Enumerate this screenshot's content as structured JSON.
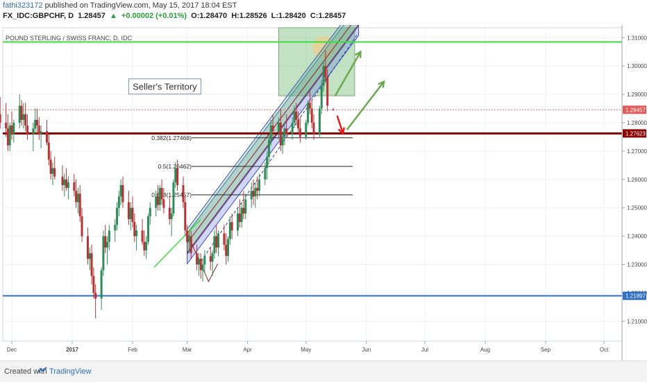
{
  "header": {
    "user": "fathi323172",
    "published": "published on TradingView.com, May 15, 2017 18:04 EST",
    "symbol": "FX_IDC:GBPCHF, D",
    "last": "1.28457",
    "change": "+0.00002 (+0.01%)",
    "open": "O:1.28470",
    "high": "H:1.28526",
    "low": "L:1.28420",
    "close": "C:1.28457"
  },
  "footer": {
    "created": "Created with",
    "brand": "TradingView"
  },
  "chart_data": {
    "type": "candlestick",
    "title": "POUND STERLING / SWISS FRANC, D, IDC",
    "ylim": [
      1.203,
      1.3135
    ],
    "y_ticks": [
      "1.21000",
      "1.22000",
      "1.23000",
      "1.24000",
      "1.25000",
      "1.26000",
      "1.27000",
      "1.28000",
      "1.29000",
      "1.30000",
      "1.31000"
    ],
    "x_ticks": [
      "Dec",
      "2017",
      "Feb",
      "Mar",
      "Apr",
      "May",
      "Jun",
      "Jul",
      "Aug",
      "Sep",
      "Oct"
    ],
    "x_tick_dates": [
      "2016-12-01",
      "2017-01-01",
      "2017-02-01",
      "2017-03-01",
      "2017-04-01",
      "2017-05-01",
      "2017-06-01",
      "2017-07-01",
      "2017-08-01",
      "2017-09-01",
      "2017-10-01"
    ],
    "price_labels": [
      {
        "label": "1.28457",
        "value": 1.28457,
        "color": "#e05a5a"
      },
      {
        "label": "1.27623",
        "value": 1.27623,
        "color": "#8b0000"
      },
      {
        "label": "1.21897",
        "value": 1.21897,
        "color": "#2f6fc6"
      }
    ],
    "horizontal_lines": [
      {
        "name": "upper-green-level",
        "value": 1.3085,
        "color": "#3ddc3d"
      },
      {
        "name": "resistance-level",
        "value": 1.27623,
        "color": "#8b0000"
      },
      {
        "name": "support-level",
        "value": 1.21897,
        "color": "#2f6fc6"
      }
    ],
    "fib_levels": [
      {
        "label": "0.382(1.27468)",
        "value": 1.27468
      },
      {
        "label": "0.5(1.26462)",
        "value": 1.26462
      },
      {
        "label": "0.618(1.25457)",
        "value": 1.25457
      }
    ],
    "annotation": "Seller's Territory",
    "candles": [
      {
        "d": "2016-11-21",
        "o": 1.25,
        "h": 1.256,
        "l": 1.248,
        "c": 1.255
      },
      {
        "d": "2016-11-22",
        "o": 1.255,
        "h": 1.27,
        "l": 1.254,
        "c": 1.268
      },
      {
        "d": "2016-11-23",
        "o": 1.268,
        "h": 1.276,
        "l": 1.265,
        "c": 1.274
      },
      {
        "d": "2016-11-24",
        "o": 1.274,
        "h": 1.285,
        "l": 1.272,
        "c": 1.283
      },
      {
        "d": "2016-11-25",
        "o": 1.283,
        "h": 1.289,
        "l": 1.278,
        "c": 1.28
      },
      {
        "d": "2016-11-28",
        "o": 1.28,
        "h": 1.287,
        "l": 1.275,
        "c": 1.278
      },
      {
        "d": "2016-11-29",
        "o": 1.278,
        "h": 1.283,
        "l": 1.27,
        "c": 1.272
      },
      {
        "d": "2016-11-30",
        "o": 1.272,
        "h": 1.28,
        "l": 1.27,
        "c": 1.279
      },
      {
        "d": "2016-12-01",
        "o": 1.279,
        "h": 1.284,
        "l": 1.274,
        "c": 1.276
      },
      {
        "d": "2016-12-02",
        "o": 1.276,
        "h": 1.281,
        "l": 1.273,
        "c": 1.28
      },
      {
        "d": "2016-12-05",
        "o": 1.28,
        "h": 1.29,
        "l": 1.278,
        "c": 1.286
      },
      {
        "d": "2016-12-06",
        "o": 1.286,
        "h": 1.288,
        "l": 1.279,
        "c": 1.281
      },
      {
        "d": "2016-12-07",
        "o": 1.281,
        "h": 1.287,
        "l": 1.278,
        "c": 1.283
      },
      {
        "d": "2016-12-08",
        "o": 1.283,
        "h": 1.287,
        "l": 1.277,
        "c": 1.279
      },
      {
        "d": "2016-12-09",
        "o": 1.279,
        "h": 1.283,
        "l": 1.274,
        "c": 1.276
      },
      {
        "d": "2016-12-12",
        "o": 1.276,
        "h": 1.28,
        "l": 1.27,
        "c": 1.278
      },
      {
        "d": "2016-12-13",
        "o": 1.278,
        "h": 1.285,
        "l": 1.276,
        "c": 1.281
      },
      {
        "d": "2016-12-14",
        "o": 1.281,
        "h": 1.285,
        "l": 1.276,
        "c": 1.279
      },
      {
        "d": "2016-12-15",
        "o": 1.279,
        "h": 1.282,
        "l": 1.274,
        "c": 1.276
      },
      {
        "d": "2016-12-16",
        "o": 1.276,
        "h": 1.279,
        "l": 1.271,
        "c": 1.277
      },
      {
        "d": "2016-12-19",
        "o": 1.277,
        "h": 1.281,
        "l": 1.272,
        "c": 1.273
      },
      {
        "d": "2016-12-20",
        "o": 1.273,
        "h": 1.276,
        "l": 1.265,
        "c": 1.267
      },
      {
        "d": "2016-12-21",
        "o": 1.267,
        "h": 1.27,
        "l": 1.26,
        "c": 1.262
      },
      {
        "d": "2016-12-22",
        "o": 1.262,
        "h": 1.266,
        "l": 1.258,
        "c": 1.264
      },
      {
        "d": "2016-12-23",
        "o": 1.264,
        "h": 1.268,
        "l": 1.26,
        "c": 1.261
      },
      {
        "d": "2016-12-27",
        "o": 1.261,
        "h": 1.265,
        "l": 1.256,
        "c": 1.258
      },
      {
        "d": "2016-12-28",
        "o": 1.258,
        "h": 1.262,
        "l": 1.254,
        "c": 1.26
      },
      {
        "d": "2016-12-29",
        "o": 1.26,
        "h": 1.264,
        "l": 1.256,
        "c": 1.257
      },
      {
        "d": "2016-12-30",
        "o": 1.257,
        "h": 1.261,
        "l": 1.253,
        "c": 1.259
      },
      {
        "d": "2017-01-02",
        "o": 1.259,
        "h": 1.262,
        "l": 1.254,
        "c": 1.256
      },
      {
        "d": "2017-01-03",
        "o": 1.256,
        "h": 1.26,
        "l": 1.25,
        "c": 1.252
      },
      {
        "d": "2017-01-04",
        "o": 1.252,
        "h": 1.257,
        "l": 1.248,
        "c": 1.255
      },
      {
        "d": "2017-01-05",
        "o": 1.255,
        "h": 1.258,
        "l": 1.245,
        "c": 1.247
      },
      {
        "d": "2017-01-06",
        "o": 1.247,
        "h": 1.25,
        "l": 1.238,
        "c": 1.24
      },
      {
        "d": "2017-01-09",
        "o": 1.24,
        "h": 1.243,
        "l": 1.23,
        "c": 1.232
      },
      {
        "d": "2017-01-10",
        "o": 1.232,
        "h": 1.236,
        "l": 1.228,
        "c": 1.234
      },
      {
        "d": "2017-01-11",
        "o": 1.234,
        "h": 1.237,
        "l": 1.223,
        "c": 1.226
      },
      {
        "d": "2017-01-12",
        "o": 1.226,
        "h": 1.229,
        "l": 1.218,
        "c": 1.22
      },
      {
        "d": "2017-01-13",
        "o": 1.22,
        "h": 1.223,
        "l": 1.211,
        "c": 1.218
      },
      {
        "d": "2017-01-16",
        "o": 1.218,
        "h": 1.229,
        "l": 1.214,
        "c": 1.228
      },
      {
        "d": "2017-01-17",
        "o": 1.228,
        "h": 1.242,
        "l": 1.226,
        "c": 1.24
      },
      {
        "d": "2017-01-18",
        "o": 1.24,
        "h": 1.244,
        "l": 1.234,
        "c": 1.236
      },
      {
        "d": "2017-01-19",
        "o": 1.236,
        "h": 1.24,
        "l": 1.23,
        "c": 1.238
      },
      {
        "d": "2017-01-20",
        "o": 1.238,
        "h": 1.244,
        "l": 1.235,
        "c": 1.242
      },
      {
        "d": "2017-01-23",
        "o": 1.242,
        "h": 1.246,
        "l": 1.238,
        "c": 1.244
      },
      {
        "d": "2017-01-24",
        "o": 1.244,
        "h": 1.252,
        "l": 1.242,
        "c": 1.25
      },
      {
        "d": "2017-01-25",
        "o": 1.25,
        "h": 1.256,
        "l": 1.247,
        "c": 1.254
      },
      {
        "d": "2017-01-26",
        "o": 1.254,
        "h": 1.26,
        "l": 1.251,
        "c": 1.258
      },
      {
        "d": "2017-01-27",
        "o": 1.258,
        "h": 1.261,
        "l": 1.25,
        "c": 1.252
      },
      {
        "d": "2017-01-30",
        "o": 1.252,
        "h": 1.256,
        "l": 1.244,
        "c": 1.246
      },
      {
        "d": "2017-01-31",
        "o": 1.246,
        "h": 1.252,
        "l": 1.242,
        "c": 1.25
      },
      {
        "d": "2017-02-01",
        "o": 1.25,
        "h": 1.254,
        "l": 1.243,
        "c": 1.245
      },
      {
        "d": "2017-02-02",
        "o": 1.245,
        "h": 1.248,
        "l": 1.238,
        "c": 1.24
      },
      {
        "d": "2017-02-03",
        "o": 1.24,
        "h": 1.244,
        "l": 1.235,
        "c": 1.242
      },
      {
        "d": "2017-02-06",
        "o": 1.242,
        "h": 1.246,
        "l": 1.237,
        "c": 1.238
      },
      {
        "d": "2017-02-07",
        "o": 1.238,
        "h": 1.242,
        "l": 1.233,
        "c": 1.235
      },
      {
        "d": "2017-02-08",
        "o": 1.235,
        "h": 1.24,
        "l": 1.232,
        "c": 1.238
      },
      {
        "d": "2017-02-09",
        "o": 1.238,
        "h": 1.248,
        "l": 1.237,
        "c": 1.247
      },
      {
        "d": "2017-02-10",
        "o": 1.247,
        "h": 1.252,
        "l": 1.244,
        "c": 1.25
      },
      {
        "d": "2017-02-13",
        "o": 1.25,
        "h": 1.256,
        "l": 1.247,
        "c": 1.254
      },
      {
        "d": "2017-02-14",
        "o": 1.254,
        "h": 1.258,
        "l": 1.249,
        "c": 1.251
      },
      {
        "d": "2017-02-15",
        "o": 1.251,
        "h": 1.258,
        "l": 1.249,
        "c": 1.257
      },
      {
        "d": "2017-02-16",
        "o": 1.257,
        "h": 1.26,
        "l": 1.251,
        "c": 1.253
      },
      {
        "d": "2017-02-17",
        "o": 1.253,
        "h": 1.257,
        "l": 1.248,
        "c": 1.25
      },
      {
        "d": "2017-02-20",
        "o": 1.25,
        "h": 1.254,
        "l": 1.244,
        "c": 1.246
      },
      {
        "d": "2017-02-21",
        "o": 1.246,
        "h": 1.25,
        "l": 1.24,
        "c": 1.248
      },
      {
        "d": "2017-02-22",
        "o": 1.248,
        "h": 1.26,
        "l": 1.247,
        "c": 1.259
      },
      {
        "d": "2017-02-23",
        "o": 1.259,
        "h": 1.266,
        "l": 1.257,
        "c": 1.264
      },
      {
        "d": "2017-02-24",
        "o": 1.264,
        "h": 1.267,
        "l": 1.256,
        "c": 1.258
      },
      {
        "d": "2017-02-27",
        "o": 1.258,
        "h": 1.261,
        "l": 1.25,
        "c": 1.252
      },
      {
        "d": "2017-02-28",
        "o": 1.252,
        "h": 1.254,
        "l": 1.24,
        "c": 1.242
      },
      {
        "d": "2017-03-01",
        "o": 1.242,
        "h": 1.244,
        "l": 1.235,
        "c": 1.238
      },
      {
        "d": "2017-03-02",
        "o": 1.238,
        "h": 1.242,
        "l": 1.234,
        "c": 1.24
      },
      {
        "d": "2017-03-03",
        "o": 1.24,
        "h": 1.242,
        "l": 1.232,
        "c": 1.234
      },
      {
        "d": "2017-03-06",
        "o": 1.234,
        "h": 1.237,
        "l": 1.228,
        "c": 1.23
      },
      {
        "d": "2017-03-07",
        "o": 1.23,
        "h": 1.234,
        "l": 1.226,
        "c": 1.232
      },
      {
        "d": "2017-03-08",
        "o": 1.232,
        "h": 1.234,
        "l": 1.225,
        "c": 1.228
      },
      {
        "d": "2017-03-09",
        "o": 1.228,
        "h": 1.232,
        "l": 1.224,
        "c": 1.23
      },
      {
        "d": "2017-03-10",
        "o": 1.23,
        "h": 1.235,
        "l": 1.227,
        "c": 1.233
      },
      {
        "d": "2017-03-13",
        "o": 1.233,
        "h": 1.236,
        "l": 1.228,
        "c": 1.231
      },
      {
        "d": "2017-03-14",
        "o": 1.231,
        "h": 1.235,
        "l": 1.226,
        "c": 1.234
      },
      {
        "d": "2017-03-15",
        "o": 1.234,
        "h": 1.242,
        "l": 1.232,
        "c": 1.24
      },
      {
        "d": "2017-03-16",
        "o": 1.24,
        "h": 1.244,
        "l": 1.234,
        "c": 1.236
      },
      {
        "d": "2017-03-17",
        "o": 1.236,
        "h": 1.242,
        "l": 1.233,
        "c": 1.241
      },
      {
        "d": "2017-03-20",
        "o": 1.241,
        "h": 1.244,
        "l": 1.235,
        "c": 1.237
      },
      {
        "d": "2017-03-21",
        "o": 1.237,
        "h": 1.241,
        "l": 1.23,
        "c": 1.233
      },
      {
        "d": "2017-03-22",
        "o": 1.233,
        "h": 1.24,
        "l": 1.231,
        "c": 1.239
      },
      {
        "d": "2017-03-23",
        "o": 1.239,
        "h": 1.247,
        "l": 1.237,
        "c": 1.245
      },
      {
        "d": "2017-03-24",
        "o": 1.245,
        "h": 1.248,
        "l": 1.239,
        "c": 1.242
      },
      {
        "d": "2017-03-27",
        "o": 1.242,
        "h": 1.25,
        "l": 1.24,
        "c": 1.248
      },
      {
        "d": "2017-03-28",
        "o": 1.248,
        "h": 1.253,
        "l": 1.243,
        "c": 1.245
      },
      {
        "d": "2017-03-29",
        "o": 1.245,
        "h": 1.252,
        "l": 1.243,
        "c": 1.25
      },
      {
        "d": "2017-03-30",
        "o": 1.25,
        "h": 1.256,
        "l": 1.246,
        "c": 1.248
      },
      {
        "d": "2017-03-31",
        "o": 1.248,
        "h": 1.255,
        "l": 1.246,
        "c": 1.253
      },
      {
        "d": "2017-04-03",
        "o": 1.253,
        "h": 1.259,
        "l": 1.25,
        "c": 1.256
      },
      {
        "d": "2017-04-04",
        "o": 1.256,
        "h": 1.26,
        "l": 1.251,
        "c": 1.254
      },
      {
        "d": "2017-04-05",
        "o": 1.254,
        "h": 1.259,
        "l": 1.25,
        "c": 1.257
      },
      {
        "d": "2017-04-06",
        "o": 1.257,
        "h": 1.261,
        "l": 1.253,
        "c": 1.256
      },
      {
        "d": "2017-04-07",
        "o": 1.256,
        "h": 1.262,
        "l": 1.254,
        "c": 1.26
      },
      {
        "d": "2017-04-10",
        "o": 1.26,
        "h": 1.266,
        "l": 1.258,
        "c": 1.264
      },
      {
        "d": "2017-04-11",
        "o": 1.264,
        "h": 1.27,
        "l": 1.26,
        "c": 1.268
      },
      {
        "d": "2017-04-12",
        "o": 1.268,
        "h": 1.276,
        "l": 1.266,
        "c": 1.274
      },
      {
        "d": "2017-04-13",
        "o": 1.274,
        "h": 1.281,
        "l": 1.272,
        "c": 1.279
      },
      {
        "d": "2017-04-14",
        "o": 1.279,
        "h": 1.283,
        "l": 1.275,
        "c": 1.277
      },
      {
        "d": "2017-04-17",
        "o": 1.277,
        "h": 1.282,
        "l": 1.274,
        "c": 1.28
      },
      {
        "d": "2017-04-18",
        "o": 1.28,
        "h": 1.285,
        "l": 1.27,
        "c": 1.272
      },
      {
        "d": "2017-04-19",
        "o": 1.272,
        "h": 1.277,
        "l": 1.269,
        "c": 1.275
      },
      {
        "d": "2017-04-20",
        "o": 1.275,
        "h": 1.28,
        "l": 1.272,
        "c": 1.278
      },
      {
        "d": "2017-04-21",
        "o": 1.278,
        "h": 1.283,
        "l": 1.275,
        "c": 1.276
      },
      {
        "d": "2017-04-24",
        "o": 1.276,
        "h": 1.282,
        "l": 1.274,
        "c": 1.28
      },
      {
        "d": "2017-04-25",
        "o": 1.28,
        "h": 1.286,
        "l": 1.278,
        "c": 1.284
      },
      {
        "d": "2017-04-26",
        "o": 1.284,
        "h": 1.287,
        "l": 1.279,
        "c": 1.281
      },
      {
        "d": "2017-04-27",
        "o": 1.281,
        "h": 1.284,
        "l": 1.276,
        "c": 1.278
      },
      {
        "d": "2017-04-28",
        "o": 1.278,
        "h": 1.282,
        "l": 1.273,
        "c": 1.275
      },
      {
        "d": "2017-05-01",
        "o": 1.275,
        "h": 1.281,
        "l": 1.274,
        "c": 1.28
      },
      {
        "d": "2017-05-02",
        "o": 1.28,
        "h": 1.288,
        "l": 1.279,
        "c": 1.287
      },
      {
        "d": "2017-05-03",
        "o": 1.287,
        "h": 1.291,
        "l": 1.283,
        "c": 1.285
      },
      {
        "d": "2017-05-04",
        "o": 1.285,
        "h": 1.288,
        "l": 1.278,
        "c": 1.28
      },
      {
        "d": "2017-05-05",
        "o": 1.28,
        "h": 1.283,
        "l": 1.274,
        "c": 1.276
      },
      {
        "d": "2017-05-08",
        "o": 1.276,
        "h": 1.286,
        "l": 1.275,
        "c": 1.285
      },
      {
        "d": "2017-05-09",
        "o": 1.285,
        "h": 1.295,
        "l": 1.283,
        "c": 1.293
      },
      {
        "d": "2017-05-10",
        "o": 1.293,
        "h": 1.302,
        "l": 1.291,
        "c": 1.3
      },
      {
        "d": "2017-05-11",
        "o": 1.3,
        "h": 1.3055,
        "l": 1.294,
        "c": 1.296
      },
      {
        "d": "2017-05-12",
        "o": 1.296,
        "h": 1.299,
        "l": 1.284,
        "c": 1.286
      },
      {
        "d": "2017-05-15",
        "o": 1.2847,
        "h": 1.28526,
        "l": 1.2842,
        "c": 1.28457
      }
    ]
  }
}
